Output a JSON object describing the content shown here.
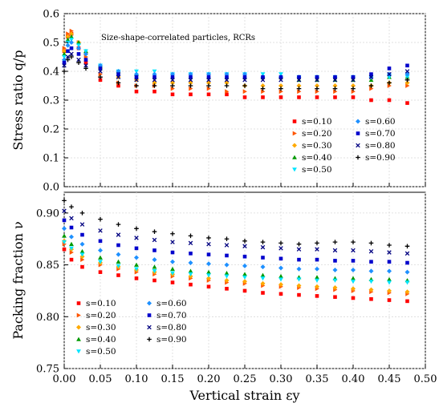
{
  "chart_data": [
    {
      "type": "scatter",
      "panel": "top",
      "ylabel": "Stress ratio q/p",
      "xlabel": "",
      "annotation": "Size-shape-correlated particles, RCRs",
      "xlim": [
        0.0,
        0.5
      ],
      "ylim": [
        0.0,
        0.6
      ],
      "yticks": [
        "0.0",
        "0.1",
        "0.2",
        "0.3",
        "0.4",
        "0.5",
        "0.6"
      ],
      "xticks": [
        "0.00",
        "0.05",
        "0.10",
        "0.15",
        "0.20",
        "0.25",
        "0.30",
        "0.35",
        "0.40",
        "0.45",
        "0.50"
      ],
      "grid": true,
      "legend_position": "bottom-right",
      "legend_columns": 2,
      "series": [
        {
          "name": "s=0.10",
          "color": "#ff0000",
          "marker": "square",
          "x": [
            0.0,
            0.005,
            0.01,
            0.02,
            0.03,
            0.05,
            0.075,
            0.1,
            0.125,
            0.15,
            0.175,
            0.2,
            0.225,
            0.25,
            0.275,
            0.3,
            0.325,
            0.35,
            0.375,
            0.4,
            0.425,
            0.45,
            0.475
          ],
          "y": [
            0.47,
            0.52,
            0.53,
            0.48,
            0.43,
            0.37,
            0.35,
            0.33,
            0.33,
            0.32,
            0.32,
            0.32,
            0.32,
            0.31,
            0.31,
            0.31,
            0.31,
            0.31,
            0.31,
            0.31,
            0.3,
            0.3,
            0.29
          ]
        },
        {
          "name": "s=0.20",
          "color": "#ff5500",
          "marker": "triangle-right",
          "x": [
            0.0,
            0.005,
            0.01,
            0.02,
            0.03,
            0.05,
            0.075,
            0.1,
            0.125,
            0.15,
            0.175,
            0.2,
            0.225,
            0.25,
            0.275,
            0.3,
            0.325,
            0.35,
            0.375,
            0.4,
            0.425,
            0.45,
            0.475
          ],
          "y": [
            0.48,
            0.53,
            0.54,
            0.5,
            0.45,
            0.39,
            0.36,
            0.35,
            0.35,
            0.34,
            0.34,
            0.34,
            0.33,
            0.33,
            0.33,
            0.33,
            0.33,
            0.33,
            0.33,
            0.33,
            0.34,
            0.35,
            0.35
          ]
        },
        {
          "name": "s=0.30",
          "color": "#ffaa00",
          "marker": "diamond",
          "x": [
            0.0,
            0.005,
            0.01,
            0.02,
            0.03,
            0.05,
            0.075,
            0.1,
            0.125,
            0.15,
            0.175,
            0.2,
            0.225,
            0.25,
            0.275,
            0.3,
            0.325,
            0.35,
            0.375,
            0.4,
            0.425,
            0.45,
            0.475
          ],
          "y": [
            0.47,
            0.52,
            0.53,
            0.5,
            0.46,
            0.41,
            0.38,
            0.37,
            0.36,
            0.36,
            0.36,
            0.36,
            0.36,
            0.35,
            0.35,
            0.35,
            0.35,
            0.35,
            0.35,
            0.35,
            0.35,
            0.36,
            0.36
          ]
        },
        {
          "name": "s=0.40",
          "color": "#009900",
          "marker": "triangle-up",
          "x": [
            0.0,
            0.005,
            0.01,
            0.02,
            0.03,
            0.05,
            0.075,
            0.1,
            0.125,
            0.15,
            0.175,
            0.2,
            0.225,
            0.25,
            0.275,
            0.3,
            0.325,
            0.35,
            0.375,
            0.4,
            0.425,
            0.45,
            0.475
          ],
          "y": [
            0.46,
            0.51,
            0.52,
            0.5,
            0.47,
            0.42,
            0.4,
            0.39,
            0.38,
            0.38,
            0.38,
            0.38,
            0.38,
            0.38,
            0.38,
            0.38,
            0.37,
            0.37,
            0.37,
            0.37,
            0.37,
            0.38,
            0.38
          ]
        },
        {
          "name": "s=0.50",
          "color": "#00e5ff",
          "marker": "triangle-down",
          "x": [
            0.0,
            0.005,
            0.01,
            0.02,
            0.03,
            0.05,
            0.075,
            0.1,
            0.125,
            0.15,
            0.175,
            0.2,
            0.225,
            0.25,
            0.275,
            0.3,
            0.325,
            0.35,
            0.375,
            0.4,
            0.425,
            0.45,
            0.475
          ],
          "y": [
            0.45,
            0.5,
            0.51,
            0.49,
            0.47,
            0.42,
            0.4,
            0.4,
            0.4,
            0.39,
            0.39,
            0.39,
            0.39,
            0.39,
            0.39,
            0.39,
            0.38,
            0.38,
            0.38,
            0.38,
            0.38,
            0.38,
            0.38
          ]
        },
        {
          "name": "s=0.60",
          "color": "#1e90ff",
          "marker": "diamond",
          "x": [
            0.0,
            0.005,
            0.01,
            0.02,
            0.03,
            0.05,
            0.075,
            0.1,
            0.125,
            0.15,
            0.175,
            0.2,
            0.225,
            0.25,
            0.275,
            0.3,
            0.325,
            0.35,
            0.375,
            0.4,
            0.425,
            0.45,
            0.475
          ],
          "y": [
            0.44,
            0.49,
            0.5,
            0.48,
            0.46,
            0.42,
            0.4,
            0.39,
            0.39,
            0.39,
            0.39,
            0.39,
            0.39,
            0.39,
            0.38,
            0.38,
            0.38,
            0.38,
            0.38,
            0.38,
            0.38,
            0.39,
            0.39
          ]
        },
        {
          "name": "s=0.70",
          "color": "#0000cc",
          "marker": "square",
          "x": [
            0.0,
            0.005,
            0.01,
            0.02,
            0.03,
            0.05,
            0.075,
            0.1,
            0.125,
            0.15,
            0.175,
            0.2,
            0.225,
            0.25,
            0.275,
            0.3,
            0.325,
            0.35,
            0.375,
            0.4,
            0.425,
            0.45,
            0.475
          ],
          "y": [
            0.43,
            0.47,
            0.48,
            0.46,
            0.44,
            0.41,
            0.39,
            0.38,
            0.38,
            0.38,
            0.38,
            0.38,
            0.38,
            0.38,
            0.38,
            0.38,
            0.38,
            0.38,
            0.38,
            0.38,
            0.39,
            0.41,
            0.42
          ]
        },
        {
          "name": "s=0.80",
          "color": "#000080",
          "marker": "x",
          "x": [
            0.0,
            0.005,
            0.01,
            0.02,
            0.03,
            0.05,
            0.075,
            0.1,
            0.125,
            0.15,
            0.175,
            0.2,
            0.225,
            0.25,
            0.275,
            0.3,
            0.325,
            0.35,
            0.375,
            0.4,
            0.425,
            0.45,
            0.475
          ],
          "y": [
            0.42,
            0.45,
            0.46,
            0.44,
            0.42,
            0.4,
            0.38,
            0.37,
            0.37,
            0.37,
            0.37,
            0.37,
            0.37,
            0.37,
            0.37,
            0.37,
            0.37,
            0.37,
            0.37,
            0.37,
            0.38,
            0.39,
            0.4
          ]
        },
        {
          "name": "s=0.90",
          "color": "#000000",
          "marker": "plus",
          "x": [
            0.0,
            0.005,
            0.01,
            0.02,
            0.03,
            0.05,
            0.075,
            0.1,
            0.125,
            0.15,
            0.175,
            0.2,
            0.225,
            0.25,
            0.275,
            0.3,
            0.325,
            0.35,
            0.375,
            0.4,
            0.425,
            0.45,
            0.475
          ],
          "y": [
            0.4,
            0.44,
            0.45,
            0.43,
            0.41,
            0.38,
            0.36,
            0.35,
            0.35,
            0.35,
            0.35,
            0.35,
            0.35,
            0.35,
            0.34,
            0.34,
            0.34,
            0.34,
            0.34,
            0.34,
            0.35,
            0.36,
            0.37
          ]
        }
      ]
    },
    {
      "type": "scatter",
      "panel": "bottom",
      "ylabel": "Packing fraction ν",
      "xlabel": "Vertical strain εy",
      "xlim": [
        0.0,
        0.5
      ],
      "ylim": [
        0.75,
        0.92
      ],
      "yticks": [
        "0.75",
        "0.80",
        "0.85",
        "0.90"
      ],
      "xticks": [
        "0.00",
        "0.05",
        "0.10",
        "0.15",
        "0.20",
        "0.25",
        "0.30",
        "0.35",
        "0.40",
        "0.45",
        "0.50"
      ],
      "grid": true,
      "legend_position": "bottom-left",
      "legend_columns": 2,
      "series": [
        {
          "name": "s=0.10",
          "color": "#ff0000",
          "marker": "square",
          "x": [
            0.0,
            0.01,
            0.025,
            0.05,
            0.075,
            0.1,
            0.125,
            0.15,
            0.175,
            0.2,
            0.225,
            0.25,
            0.275,
            0.3,
            0.325,
            0.35,
            0.375,
            0.4,
            0.425,
            0.45,
            0.475
          ],
          "y": [
            0.865,
            0.855,
            0.848,
            0.843,
            0.84,
            0.837,
            0.835,
            0.833,
            0.831,
            0.829,
            0.827,
            0.825,
            0.823,
            0.822,
            0.821,
            0.82,
            0.819,
            0.818,
            0.817,
            0.816,
            0.815
          ]
        },
        {
          "name": "s=0.20",
          "color": "#ff5500",
          "marker": "triangle-right",
          "x": [
            0.0,
            0.01,
            0.025,
            0.05,
            0.075,
            0.1,
            0.125,
            0.15,
            0.175,
            0.2,
            0.225,
            0.25,
            0.275,
            0.3,
            0.325,
            0.35,
            0.375,
            0.4,
            0.425,
            0.45,
            0.475
          ],
          "y": [
            0.87,
            0.862,
            0.855,
            0.85,
            0.846,
            0.843,
            0.841,
            0.839,
            0.837,
            0.835,
            0.833,
            0.832,
            0.83,
            0.829,
            0.828,
            0.827,
            0.826,
            0.825,
            0.824,
            0.823,
            0.822
          ]
        },
        {
          "name": "s=0.30",
          "color": "#ffaa00",
          "marker": "diamond",
          "x": [
            0.0,
            0.01,
            0.025,
            0.05,
            0.075,
            0.1,
            0.125,
            0.15,
            0.175,
            0.2,
            0.225,
            0.25,
            0.275,
            0.3,
            0.325,
            0.35,
            0.375,
            0.4,
            0.425,
            0.45,
            0.475
          ],
          "y": [
            0.873,
            0.865,
            0.858,
            0.852,
            0.848,
            0.845,
            0.843,
            0.841,
            0.839,
            0.837,
            0.835,
            0.834,
            0.832,
            0.831,
            0.83,
            0.829,
            0.828,
            0.827,
            0.826,
            0.825,
            0.824
          ]
        },
        {
          "name": "s=0.40",
          "color": "#009900",
          "marker": "triangle-up",
          "x": [
            0.0,
            0.01,
            0.025,
            0.05,
            0.075,
            0.1,
            0.125,
            0.15,
            0.175,
            0.2,
            0.225,
            0.25,
            0.275,
            0.3,
            0.325,
            0.35,
            0.375,
            0.4,
            0.425,
            0.45,
            0.475
          ],
          "y": [
            0.878,
            0.87,
            0.863,
            0.857,
            0.853,
            0.85,
            0.848,
            0.846,
            0.844,
            0.843,
            0.842,
            0.841,
            0.84,
            0.839,
            0.838,
            0.838,
            0.837,
            0.837,
            0.836,
            0.836,
            0.835
          ]
        },
        {
          "name": "s=0.50",
          "color": "#00e5ff",
          "marker": "triangle-down",
          "x": [
            0.0,
            0.01,
            0.025,
            0.05,
            0.075,
            0.1,
            0.125,
            0.15,
            0.175,
            0.2,
            0.225,
            0.25,
            0.275,
            0.3,
            0.325,
            0.35,
            0.375,
            0.4,
            0.425,
            0.45,
            0.475
          ],
          "y": [
            0.872,
            0.866,
            0.86,
            0.853,
            0.849,
            0.846,
            0.844,
            0.842,
            0.841,
            0.84,
            0.839,
            0.838,
            0.837,
            0.836,
            0.836,
            0.835,
            0.835,
            0.834,
            0.834,
            0.833,
            0.833
          ]
        },
        {
          "name": "s=0.60",
          "color": "#1e90ff",
          "marker": "diamond",
          "x": [
            0.0,
            0.01,
            0.025,
            0.05,
            0.075,
            0.1,
            0.125,
            0.15,
            0.175,
            0.2,
            0.225,
            0.25,
            0.275,
            0.3,
            0.325,
            0.35,
            0.375,
            0.4,
            0.425,
            0.45,
            0.475
          ],
          "y": [
            0.885,
            0.877,
            0.87,
            0.864,
            0.86,
            0.857,
            0.855,
            0.853,
            0.852,
            0.851,
            0.85,
            0.849,
            0.848,
            0.847,
            0.846,
            0.846,
            0.845,
            0.845,
            0.844,
            0.844,
            0.843
          ]
        },
        {
          "name": "s=0.70",
          "color": "#0000cc",
          "marker": "square",
          "x": [
            0.0,
            0.01,
            0.025,
            0.05,
            0.075,
            0.1,
            0.125,
            0.15,
            0.175,
            0.2,
            0.225,
            0.25,
            0.275,
            0.3,
            0.325,
            0.35,
            0.375,
            0.4,
            0.425,
            0.45,
            0.475
          ],
          "y": [
            0.893,
            0.886,
            0.879,
            0.873,
            0.869,
            0.866,
            0.864,
            0.862,
            0.861,
            0.86,
            0.859,
            0.858,
            0.857,
            0.856,
            0.855,
            0.855,
            0.854,
            0.854,
            0.853,
            0.853,
            0.852
          ]
        },
        {
          "name": "s=0.80",
          "color": "#000080",
          "marker": "x",
          "x": [
            0.0,
            0.01,
            0.025,
            0.05,
            0.075,
            0.1,
            0.125,
            0.15,
            0.175,
            0.2,
            0.225,
            0.25,
            0.275,
            0.3,
            0.325,
            0.35,
            0.375,
            0.4,
            0.425,
            0.45,
            0.475
          ],
          "y": [
            0.902,
            0.895,
            0.889,
            0.883,
            0.879,
            0.876,
            0.874,
            0.872,
            0.871,
            0.87,
            0.869,
            0.868,
            0.867,
            0.866,
            0.865,
            0.865,
            0.864,
            0.864,
            0.863,
            0.862,
            0.861
          ]
        },
        {
          "name": "s=0.90",
          "color": "#000000",
          "marker": "plus",
          "x": [
            0.0,
            0.01,
            0.025,
            0.05,
            0.075,
            0.1,
            0.125,
            0.15,
            0.175,
            0.2,
            0.225,
            0.25,
            0.275,
            0.3,
            0.325,
            0.35,
            0.375,
            0.4,
            0.425,
            0.45,
            0.475
          ],
          "y": [
            0.912,
            0.906,
            0.9,
            0.894,
            0.889,
            0.885,
            0.882,
            0.88,
            0.878,
            0.876,
            0.875,
            0.873,
            0.872,
            0.871,
            0.87,
            0.871,
            0.872,
            0.872,
            0.871,
            0.869,
            0.868
          ]
        }
      ]
    }
  ]
}
